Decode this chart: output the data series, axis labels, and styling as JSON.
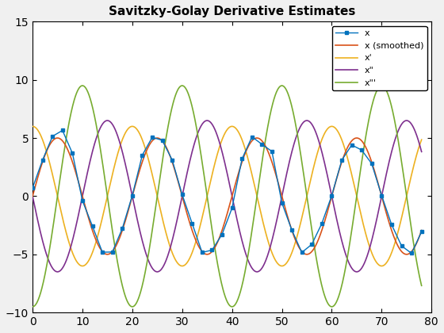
{
  "title": "Savitzky-Golay Derivative Estimates",
  "xlim": [
    0,
    80
  ],
  "ylim": [
    -10,
    15
  ],
  "yticks": [
    -10,
    -5,
    0,
    5,
    10,
    15
  ],
  "xticks": [
    0,
    10,
    20,
    30,
    40,
    50,
    60,
    70,
    80
  ],
  "colors": {
    "x": "#0072BD",
    "x_smoothed": "#D95319",
    "x_prime": "#EDB120",
    "x_double_prime": "#7E2F8E",
    "x_triple_prime": "#77AC30"
  },
  "legend_labels": [
    "x",
    "x (smoothed)",
    "x'",
    "x\"",
    "x\"'"
  ],
  "figsize": [
    5.6,
    4.2
  ],
  "dpi": 100,
  "bg_color": "#F0F0F0",
  "axes_bg": "#FFFFFF"
}
